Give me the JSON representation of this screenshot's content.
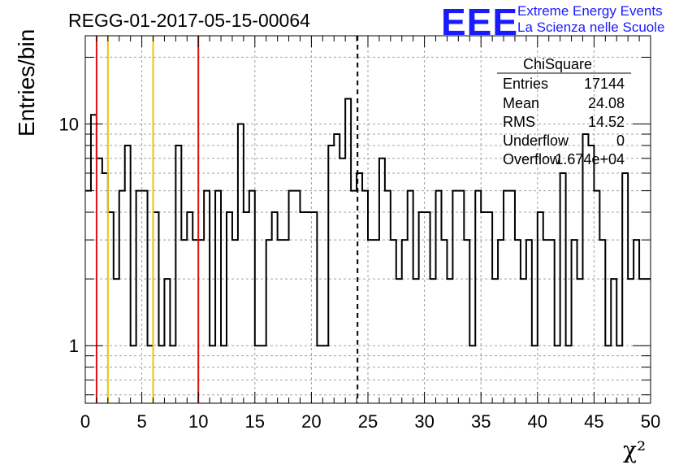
{
  "title": "REGG-01-2017-05-15-00064",
  "logo": {
    "mark": "EEE",
    "line1": "Extreme Energy Events",
    "line2": "La Scienza nelle Scuole",
    "color": "#1a1aff"
  },
  "stats": {
    "title": "ChiSquare",
    "rows": [
      {
        "label": "Entries",
        "value": "17144"
      },
      {
        "label": "Mean",
        "value": "24.08"
      },
      {
        "label": "RMS",
        "value": "14.52"
      },
      {
        "label": "Underflow",
        "value": "0"
      },
      {
        "label": "Overflow",
        "value": "1.674e+04"
      }
    ]
  },
  "chart_data": {
    "type": "histogram",
    "ylabel": "Entries/bin",
    "xlabel": "χ²",
    "xlim": [
      0,
      50
    ],
    "ylim": [
      0.55,
      25
    ],
    "yscale": "log",
    "grid": true,
    "bin_width": 0.5,
    "x_ticks": [
      "0",
      "5",
      "10",
      "15",
      "20",
      "25",
      "30",
      "35",
      "40",
      "45",
      "50"
    ],
    "y_ticks": [
      "1",
      "10"
    ],
    "values": [
      5,
      11,
      7,
      6,
      4,
      2,
      5,
      8,
      1,
      5,
      5,
      1,
      4,
      1,
      2,
      1,
      8,
      3,
      4,
      3,
      3,
      5,
      1,
      5,
      1,
      4,
      3,
      10,
      4,
      5,
      1,
      1,
      3,
      4,
      3,
      3,
      5,
      5,
      4,
      4,
      4,
      1,
      1,
      8,
      9,
      7,
      13,
      5,
      6,
      5,
      3,
      3,
      7,
      5,
      3,
      2,
      3,
      5,
      2,
      4,
      4,
      2,
      5,
      3,
      2,
      5,
      5,
      3,
      1,
      5,
      4,
      4,
      2,
      3,
      5,
      5,
      3,
      2,
      3,
      1,
      4,
      3,
      3,
      1,
      6,
      1,
      3,
      2,
      9,
      8,
      5,
      3,
      1,
      2,
      1,
      6,
      2,
      3,
      2,
      2
    ],
    "vlines": [
      {
        "x": 1,
        "color": "#dd1111",
        "style": "solid"
      },
      {
        "x": 2,
        "color": "#f0c010",
        "style": "solid"
      },
      {
        "x": 6,
        "color": "#f0c010",
        "style": "solid"
      },
      {
        "x": 10,
        "color": "#dd1111",
        "style": "solid"
      },
      {
        "x": 24.08,
        "color": "#000000",
        "style": "dashed"
      }
    ]
  }
}
